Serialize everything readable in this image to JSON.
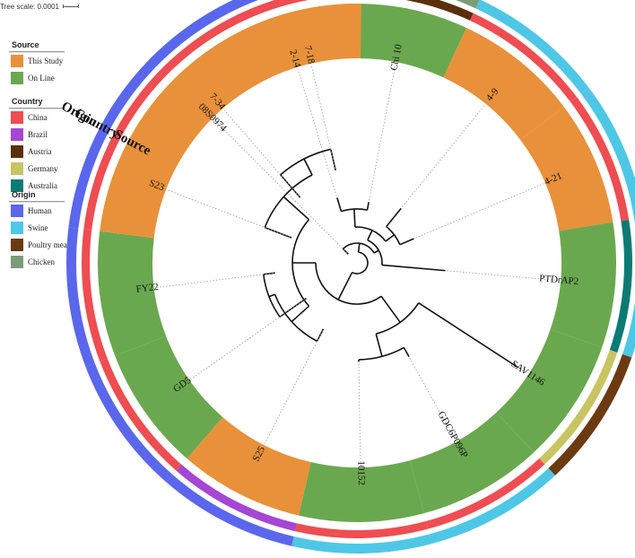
{
  "tree_scale": {
    "label": "Tree scale: 0.0001"
  },
  "legends": [
    {
      "title": "Source",
      "items": [
        {
          "label": "This Study",
          "color": "#E8913A"
        },
        {
          "label": "On Line",
          "color": "#6AA84F"
        }
      ]
    },
    {
      "title": "Country",
      "items": [
        {
          "label": "China",
          "color": "#EE4D52"
        },
        {
          "label": "Brazil",
          "color": "#A546D4"
        },
        {
          "label": "Austria",
          "color": "#5A2F0C"
        },
        {
          "label": "Germany",
          "color": "#C8C461"
        },
        {
          "label": "Australia",
          "color": "#0C7A74"
        }
      ]
    },
    {
      "title": "Origin",
      "items": [
        {
          "label": "Human",
          "color": "#5A67EC"
        },
        {
          "label": "Swine",
          "color": "#4EC7E6"
        },
        {
          "label": "Poultry meat",
          "color": "#6B3A10"
        },
        {
          "label": "Chicken",
          "color": "#7C9B78"
        }
      ]
    }
  ],
  "ring_titles": {
    "source": "Source",
    "country": "Country",
    "origin": "Origin"
  },
  "leaves": [
    {
      "name": "08S0974",
      "source": "On Line",
      "country": "Germany",
      "origin": "Swine"
    },
    {
      "name": "2-14",
      "source": "This Study",
      "country": "China",
      "origin": "Swine"
    },
    {
      "name": "Chi 10",
      "source": "On Line",
      "country": "Austria",
      "origin": "Chicken"
    },
    {
      "name": "4-9",
      "source": "This Study",
      "country": "China",
      "origin": "Swine"
    },
    {
      "name": "4-21",
      "source": "This Study",
      "country": "China",
      "origin": "Swine"
    },
    {
      "name": "PTDrAP2",
      "source": "On Line",
      "country": "Australia",
      "origin": "Swine"
    },
    {
      "name": "SAV1146",
      "source": "On Line",
      "country": "Germany",
      "origin": "Poultry meat"
    },
    {
      "name": "GDC6P096P",
      "source": "On Line",
      "country": "China",
      "origin": "Swine"
    },
    {
      "name": "10152",
      "source": "On Line",
      "country": "China",
      "origin": "Swine"
    },
    {
      "name": "S25",
      "source": "This Study",
      "country": "Brazil",
      "origin": "Human"
    },
    {
      "name": "GD5",
      "source": "On Line",
      "country": "China",
      "origin": "Human"
    },
    {
      "name": "FY22",
      "source": "On Line",
      "country": "China",
      "origin": "Human"
    },
    {
      "name": "S23",
      "source": "This Study",
      "country": "China",
      "origin": "Human"
    },
    {
      "name": "7-34",
      "source": "This Study",
      "country": "China",
      "origin": "Human"
    },
    {
      "name": "7-18",
      "source": "This Study",
      "country": "China",
      "origin": "Human"
    }
  ]
}
